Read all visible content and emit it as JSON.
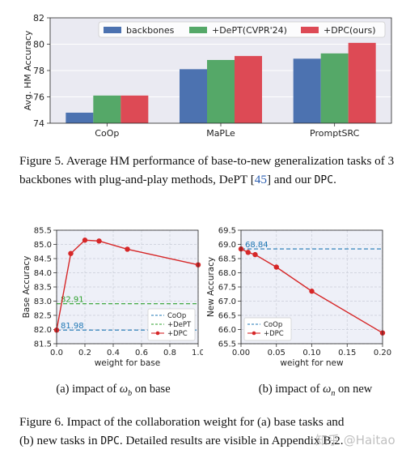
{
  "fig5": {
    "chart_data": {
      "type": "bar",
      "categories": [
        "CoOp",
        "MaPLe",
        "PromptSRC"
      ],
      "series": [
        {
          "name": "backbones",
          "values": [
            74.8,
            78.1,
            78.9
          ]
        },
        {
          "name": "+DePT(CVPR'24)",
          "values": [
            76.1,
            78.8,
            79.3
          ]
        },
        {
          "name": "+DPC(ours)",
          "values": [
            76.1,
            79.1,
            80.1
          ]
        }
      ],
      "ylabel": "Avg. HM Accuracy",
      "ylim": [
        74,
        82
      ],
      "yticks": [
        "74",
        "76",
        "78",
        "80",
        "82"
      ],
      "colors": [
        "#4c72b0",
        "#55a868",
        "#dd4a55"
      ],
      "legend_position": "top",
      "grid": true
    },
    "caption": {
      "label": "Figure 5.",
      "text": "Average HM performance of base-to-new generalization tasks of 3 backbones with plug-and-play methods, DePT [",
      "ref": "45",
      "text2": "] and our ",
      "code": "DPC",
      "end": "."
    }
  },
  "fig6a": {
    "chart_data": {
      "type": "line",
      "x": [
        0.0,
        0.1,
        0.2,
        0.3,
        0.5,
        1.0
      ],
      "series": [
        {
          "name": "+DPC",
          "values": [
            81.98,
            84.68,
            85.15,
            85.12,
            84.83,
            84.28
          ]
        }
      ],
      "hlines": [
        {
          "name": "CoOp",
          "value": 81.98,
          "label": "81.98",
          "color": "#1f77b4"
        },
        {
          "name": "+DePT",
          "value": 82.91,
          "label": "82.91",
          "color": "#2ca02c"
        }
      ],
      "xlabel": "weight for base",
      "ylabel": "Base Accuracy",
      "xlim": [
        0.0,
        1.0
      ],
      "ylim": [
        81.5,
        85.5
      ],
      "xticks": [
        "0.0",
        "0.2",
        "0.4",
        "0.6",
        "0.8",
        "1.0"
      ],
      "yticks": [
        "81.5",
        "82.0",
        "82.5",
        "83.0",
        "83.5",
        "84.0",
        "84.5",
        "85.0",
        "85.5"
      ],
      "line_color": "#d62728",
      "legend_position": "lower-right",
      "grid": true
    },
    "subcaption": {
      "prefix": "(a) impact of ",
      "symbol": "ω",
      "sub": "b",
      "suffix": " on base"
    }
  },
  "fig6b": {
    "chart_data": {
      "type": "line",
      "x": [
        0.0,
        0.01,
        0.02,
        0.05,
        0.1,
        0.2
      ],
      "series": [
        {
          "name": "+DPC",
          "values": [
            68.84,
            68.72,
            68.64,
            68.2,
            67.35,
            65.88
          ]
        }
      ],
      "hlines": [
        {
          "name": "CoOp",
          "value": 68.84,
          "label": "68.84",
          "color": "#1f77b4"
        }
      ],
      "xlabel": "weight for new",
      "ylabel": "New Accuracy",
      "xlim": [
        0.0,
        0.2
      ],
      "ylim": [
        65.5,
        69.5
      ],
      "xticks": [
        "0.00",
        "0.05",
        "0.10",
        "0.15",
        "0.20"
      ],
      "yticks": [
        "65.5",
        "66.0",
        "66.5",
        "67.0",
        "67.5",
        "68.0",
        "68.5",
        "69.0",
        "69.5"
      ],
      "line_color": "#d62728",
      "legend_position": "lower-left",
      "grid": true
    },
    "subcaption": {
      "prefix": "(b) impact of ",
      "symbol": "ω",
      "sub": "n",
      "suffix": " on new"
    }
  },
  "fig6caption": {
    "line1": "Figure 6. Impact of the collaboration weight for (a) base tasks and",
    "line2a": "(b) new tasks in ",
    "code": "DPC",
    "line2b": ". Detailed results are visible in ",
    "tail": "Appendix B.2."
  },
  "watermark": "知乎 @Haitao"
}
